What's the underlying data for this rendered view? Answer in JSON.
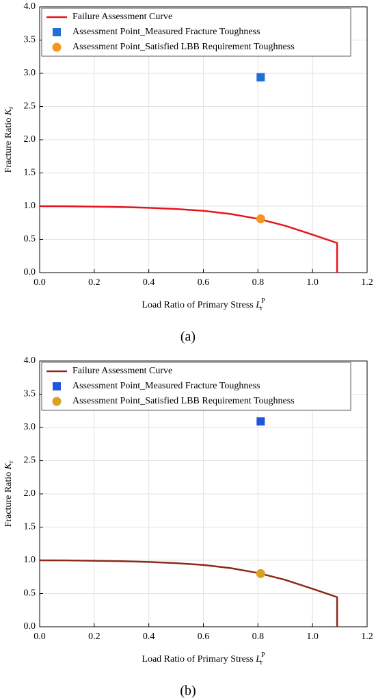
{
  "chart_data": [
    {
      "type": "line",
      "caption": "(a)",
      "x_label": "Load Ratio of Primary Stress",
      "x_label_symbol": "L",
      "x_label_sub": "r",
      "x_label_sup": "P",
      "y_label": "Fracture Ratio",
      "y_label_symbol": "K",
      "y_label_sub": "r",
      "xlim": [
        0,
        1.2
      ],
      "ylim": [
        0,
        4
      ],
      "xticks": [
        {
          "value": 0,
          "label": "0.0"
        },
        {
          "value": 0.2,
          "label": "0.2"
        },
        {
          "value": 0.4,
          "label": "0.4"
        },
        {
          "value": 0.6,
          "label": "0.6"
        },
        {
          "value": 0.8,
          "label": "0.8"
        },
        {
          "value": 1.0,
          "label": "1.0"
        },
        {
          "value": 1.2,
          "label": "1.2"
        }
      ],
      "yticks": [
        {
          "value": 0,
          "label": "0.0"
        },
        {
          "value": 0.5,
          "label": "0.5"
        },
        {
          "value": 1.0,
          "label": "1.0"
        },
        {
          "value": 1.5,
          "label": "1.5"
        },
        {
          "value": 2.0,
          "label": "2.0"
        },
        {
          "value": 2.5,
          "label": "2.5"
        },
        {
          "value": 3.0,
          "label": "3.0"
        },
        {
          "value": 3.5,
          "label": "3.5"
        },
        {
          "value": 4.0,
          "label": "4.0"
        }
      ],
      "grid": true,
      "legend": "top-left",
      "series": [
        {
          "name": "Failure Assessment Curve",
          "color": "#e8141b",
          "marker": "line",
          "x": [
            0,
            0.1,
            0.2,
            0.3,
            0.4,
            0.5,
            0.6,
            0.7,
            0.8,
            0.9,
            1.0,
            1.09,
            1.09
          ],
          "values": [
            1.0,
            0.999,
            0.994,
            0.987,
            0.976,
            0.958,
            0.93,
            0.883,
            0.81,
            0.706,
            0.572,
            0.446,
            0
          ]
        },
        {
          "name": "Assessment Point_Measured Fracture Toughness",
          "color": "#1f6fd6",
          "marker": "square",
          "x": [
            0.81
          ],
          "values": [
            2.94
          ]
        },
        {
          "name": "Assessment Point_Satisfied LBB Requirement Toughness",
          "color": "#f7941d",
          "marker": "circle",
          "x": [
            0.81
          ],
          "values": [
            0.81
          ]
        }
      ]
    },
    {
      "type": "line",
      "caption": "(b)",
      "x_label": "Load Ratio of Primary Stress",
      "x_label_symbol": "L",
      "x_label_sub": "r",
      "x_label_sup": "P",
      "y_label": "Fracture Ratio",
      "y_label_symbol": "K",
      "y_label_sub": "r",
      "xlim": [
        0,
        1.2
      ],
      "ylim": [
        0,
        4
      ],
      "xticks": [
        {
          "value": 0,
          "label": "0.0"
        },
        {
          "value": 0.2,
          "label": "0.2"
        },
        {
          "value": 0.4,
          "label": "0.4"
        },
        {
          "value": 0.6,
          "label": "0.6"
        },
        {
          "value": 0.8,
          "label": "0.8"
        },
        {
          "value": 1.0,
          "label": "1.0"
        },
        {
          "value": 1.2,
          "label": "1.2"
        }
      ],
      "yticks": [
        {
          "value": 0,
          "label": "0.0"
        },
        {
          "value": 0.5,
          "label": "0.5"
        },
        {
          "value": 1.0,
          "label": "1.0"
        },
        {
          "value": 1.5,
          "label": "1.5"
        },
        {
          "value": 2.0,
          "label": "2.0"
        },
        {
          "value": 2.5,
          "label": "2.5"
        },
        {
          "value": 3.0,
          "label": "3.0"
        },
        {
          "value": 3.5,
          "label": "3.5"
        },
        {
          "value": 4.0,
          "label": "4.0"
        }
      ],
      "grid": true,
      "legend": "top-left",
      "series": [
        {
          "name": "Failure Assessment Curve",
          "color": "#8b2a1a",
          "marker": "line",
          "x": [
            0,
            0.1,
            0.2,
            0.3,
            0.4,
            0.5,
            0.6,
            0.7,
            0.8,
            0.9,
            1.0,
            1.09,
            1.09
          ],
          "values": [
            1.0,
            0.999,
            0.994,
            0.987,
            0.976,
            0.958,
            0.93,
            0.883,
            0.81,
            0.706,
            0.572,
            0.446,
            0
          ]
        },
        {
          "name": "Assessment Point_Measured Fracture Toughness",
          "color": "#2255dd",
          "marker": "square",
          "x": [
            0.81
          ],
          "values": [
            3.09
          ]
        },
        {
          "name": "Assessment Point_Satisfied LBB Requirement Toughness",
          "color": "#d9a11f",
          "marker": "circle",
          "x": [
            0.81
          ],
          "values": [
            0.8
          ]
        }
      ]
    }
  ]
}
